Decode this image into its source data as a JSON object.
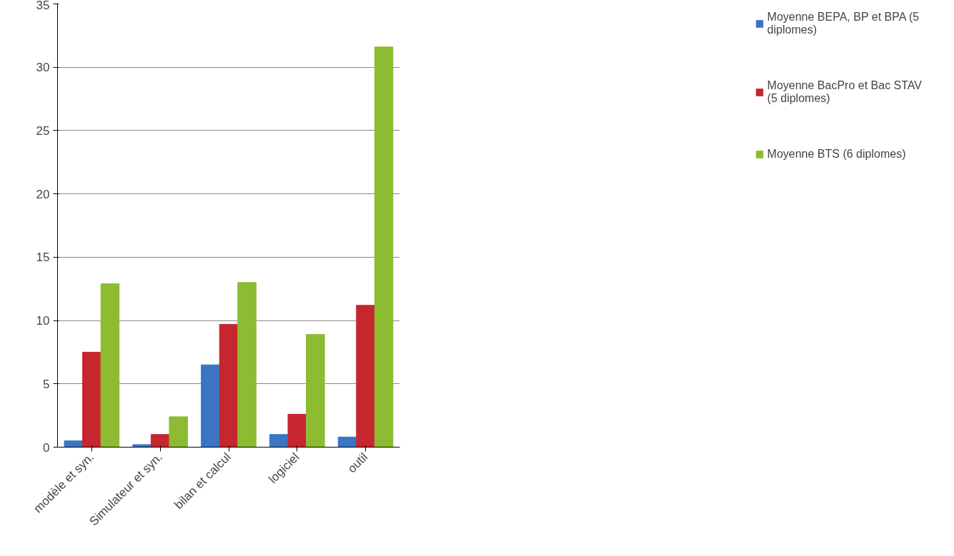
{
  "chart_data": {
    "type": "bar",
    "categories": [
      "modèle et syn.",
      "Simulateur et syn.",
      "bilan et calcul",
      "logiciel",
      "outil"
    ],
    "series": [
      {
        "name": "Moyenne BEPA, BP et BPA (5 diplomes)",
        "color": "#3a75c4",
        "values": [
          0.5,
          0.2,
          6.5,
          1.0,
          0.8
        ]
      },
      {
        "name": "Moyenne BacPro et Bac STAV (5 diplomes)",
        "color": "#c6262e",
        "values": [
          7.5,
          1.0,
          9.7,
          2.6,
          11.2
        ]
      },
      {
        "name": "Moyenne BTS (6 diplomes)",
        "color": "#8dbb32",
        "values": [
          12.9,
          2.4,
          13.0,
          8.9,
          31.6
        ]
      }
    ],
    "ylim": [
      0,
      35
    ],
    "yticks": [
      0,
      5,
      10,
      15,
      20,
      25,
      30,
      35
    ],
    "grid": "y",
    "legend": "right"
  }
}
